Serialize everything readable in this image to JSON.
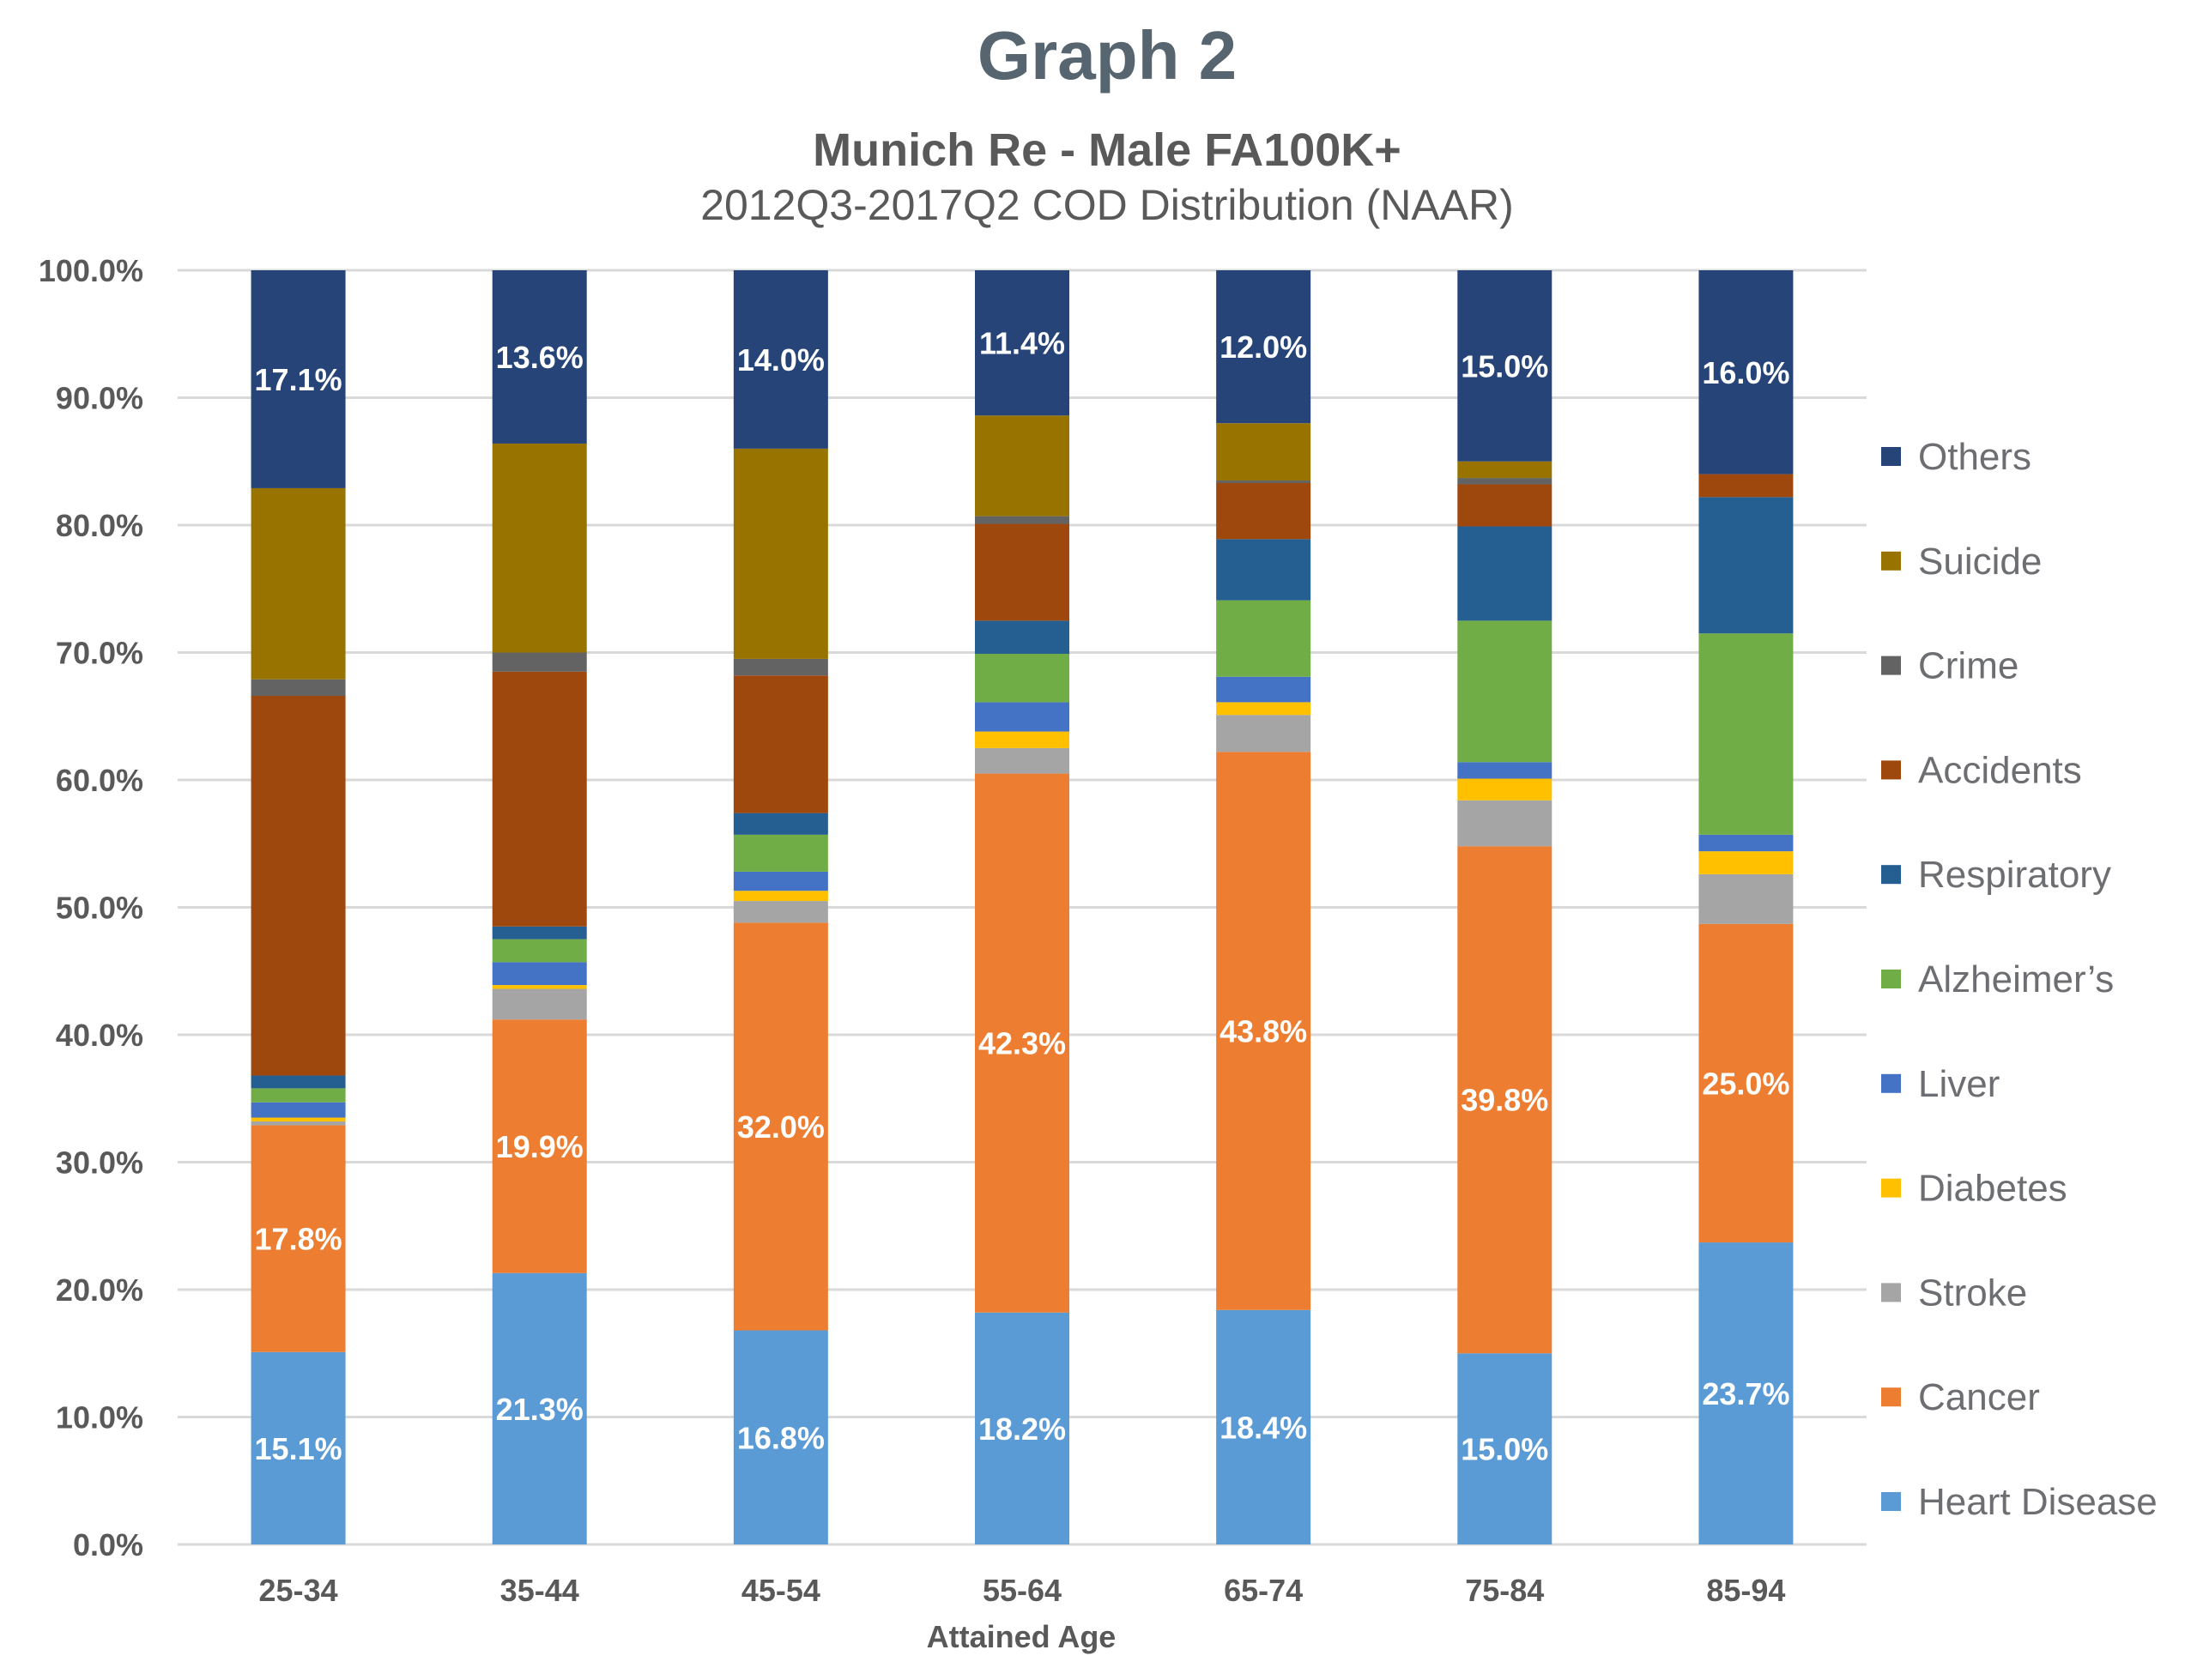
{
  "chart_data": {
    "type": "bar",
    "stacked": true,
    "normalized": true,
    "title": "Graph 2",
    "subtitle": "Munich Re - Male FA100K+",
    "subtitle2": "2012Q3-2017Q2 COD Distribution (NAAR)",
    "xlabel": "Attained Age",
    "ylabel": "",
    "ylim": [
      0,
      100
    ],
    "yticks": [
      0,
      10,
      20,
      30,
      40,
      50,
      60,
      70,
      80,
      90,
      100
    ],
    "ytick_labels": [
      "0.0%",
      "10.0%",
      "20.0%",
      "30.0%",
      "40.0%",
      "50.0%",
      "60.0%",
      "70.0%",
      "80.0%",
      "90.0%",
      "100.0%"
    ],
    "grid": true,
    "legend_position": "right",
    "categories": [
      "25-34",
      "35-44",
      "45-54",
      "55-64",
      "65-74",
      "75-84",
      "85-94"
    ],
    "series": [
      {
        "name": "Heart Disease",
        "color": "#5b9bd5",
        "values": [
          15.1,
          21.3,
          16.8,
          18.2,
          18.4,
          15.0,
          23.7
        ],
        "show_labels": true
      },
      {
        "name": "Cancer",
        "color": "#ed7d31",
        "values": [
          17.8,
          19.9,
          32.0,
          42.3,
          43.8,
          39.8,
          25.0
        ],
        "show_labels": true
      },
      {
        "name": "Stroke",
        "color": "#a5a5a5",
        "values": [
          0.3,
          2.4,
          1.7,
          2.0,
          2.9,
          3.6,
          3.9
        ],
        "show_labels": false
      },
      {
        "name": "Diabetes",
        "color": "#ffc000",
        "values": [
          0.3,
          0.3,
          0.8,
          1.3,
          1.0,
          1.7,
          1.8
        ],
        "show_labels": false
      },
      {
        "name": "Liver",
        "color": "#4472c4",
        "values": [
          1.2,
          1.8,
          1.5,
          2.3,
          2.0,
          1.3,
          1.3
        ],
        "show_labels": false
      },
      {
        "name": "Alzheimer’s",
        "color": "#70ad47",
        "values": [
          1.1,
          1.8,
          2.9,
          3.8,
          6.0,
          11.1,
          15.8
        ],
        "show_labels": false
      },
      {
        "name": "Respiratory",
        "color": "#255e91",
        "values": [
          1.0,
          1.0,
          1.7,
          2.6,
          4.8,
          7.4,
          10.7
        ],
        "show_labels": false
      },
      {
        "name": "Accidents",
        "color": "#9e480e",
        "values": [
          29.8,
          20.0,
          10.8,
          7.6,
          4.4,
          3.3,
          1.8
        ],
        "show_labels": false
      },
      {
        "name": "Crime",
        "color": "#636363",
        "values": [
          1.3,
          1.5,
          1.3,
          0.6,
          0.2,
          0.5,
          0.0
        ],
        "show_labels": false
      },
      {
        "name": "Suicide",
        "color": "#997300",
        "values": [
          15.0,
          16.4,
          16.5,
          7.9,
          4.5,
          1.3,
          0.0
        ],
        "show_labels": false
      },
      {
        "name": "Others",
        "color": "#264478",
        "values": [
          17.1,
          13.6,
          14.0,
          11.4,
          12.0,
          15.0,
          16.0
        ],
        "show_labels": true
      }
    ],
    "legend_order": [
      "Others",
      "Suicide",
      "Crime",
      "Accidents",
      "Respiratory",
      "Alzheimer’s",
      "Liver",
      "Diabetes",
      "Stroke",
      "Cancer",
      "Heart Disease"
    ],
    "data_labels": {
      "Heart Disease": [
        "15.1%",
        "21.3%",
        "16.8%",
        "18.2%",
        "18.4%",
        "15.0%",
        "23.7%"
      ],
      "Cancer": [
        "17.8%",
        "19.9%",
        "32.0%",
        "42.3%",
        "43.8%",
        "39.8%",
        "25.0%"
      ],
      "Others": [
        "17.1%",
        "13.6%",
        "14.0%",
        "11.4%",
        "12.0%",
        "15.0%",
        "16.0%"
      ]
    }
  }
}
